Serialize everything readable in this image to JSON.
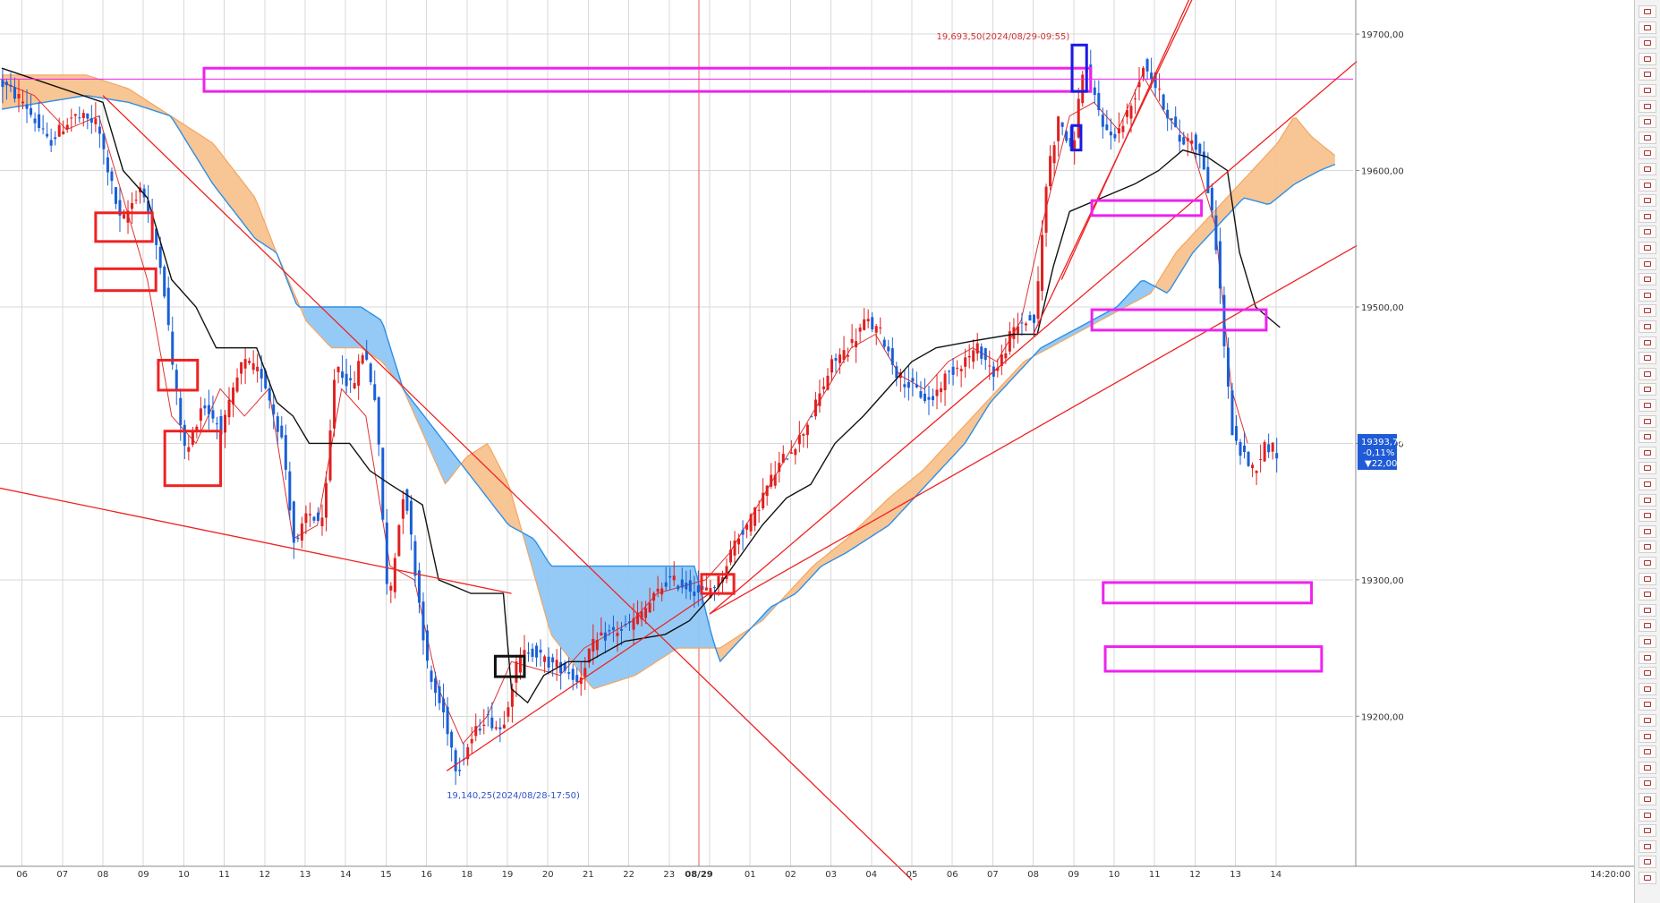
{
  "chart_data": {
    "type": "candlestick",
    "title": "",
    "ylim": [
      19090,
      19725
    ],
    "yticks": [
      "19700,00",
      "19600,00",
      "19500,00",
      "19400,00",
      "19300,00",
      "19200,00"
    ],
    "ytick_values": [
      19700,
      19600,
      19500,
      19400,
      19300,
      19200
    ],
    "xticks": [
      "06",
      "07",
      "08",
      "09",
      "10",
      "11",
      "12",
      "13",
      "14",
      "15",
      "16",
      "18",
      "19",
      "20",
      "21",
      "22",
      "23",
      "08/29",
      "01",
      "02",
      "03",
      "04",
      "05",
      "06",
      "07",
      "08",
      "09",
      "10",
      "11",
      "12",
      "13",
      "14"
    ],
    "xtick_slots": [
      0.5,
      1.5,
      2.5,
      3.5,
      4.5,
      5.5,
      6.5,
      7.5,
      8.5,
      9.5,
      10.5,
      11.5,
      12.5,
      13.5,
      14.5,
      15.5,
      16.5,
      17.5,
      18.5,
      19.5,
      20.5,
      21.5,
      22.5,
      23.5,
      24.5,
      25.5,
      26.5,
      27.5,
      28.5,
      29.5,
      30.5,
      31.5
    ],
    "xaxis_end_label": "14:20:00",
    "day_separator_label": "08/29",
    "close_path": [
      [
        0,
        19665
      ],
      [
        0.6,
        19650
      ],
      [
        1.2,
        19620
      ],
      [
        1.8,
        19640
      ],
      [
        2.4,
        19635
      ],
      [
        3.0,
        19560
      ],
      [
        3.5,
        19590
      ],
      [
        4.0,
        19530
      ],
      [
        4.3,
        19450
      ],
      [
        4.6,
        19390
      ],
      [
        5.0,
        19430
      ],
      [
        5.5,
        19410
      ],
      [
        6.0,
        19460
      ],
      [
        6.5,
        19450
      ],
      [
        7.0,
        19400
      ],
      [
        7.3,
        19320
      ],
      [
        7.6,
        19350
      ],
      [
        8.0,
        19340
      ],
      [
        8.3,
        19460
      ],
      [
        8.7,
        19440
      ],
      [
        9.0,
        19470
      ],
      [
        9.3,
        19430
      ],
      [
        9.6,
        19280
      ],
      [
        10.0,
        19370
      ],
      [
        10.3,
        19300
      ],
      [
        10.6,
        19230
      ],
      [
        11.0,
        19200
      ],
      [
        11.3,
        19160
      ],
      [
        11.6,
        19180
      ],
      [
        12.0,
        19200
      ],
      [
        12.4,
        19190
      ],
      [
        12.8,
        19240
      ],
      [
        13.1,
        19250
      ],
      [
        13.5,
        19240
      ],
      [
        14.0,
        19235
      ],
      [
        14.3,
        19225
      ],
      [
        14.6,
        19250
      ],
      [
        15.0,
        19260
      ],
      [
        15.5,
        19265
      ],
      [
        16.0,
        19280
      ],
      [
        16.5,
        19300
      ],
      [
        17.0,
        19295
      ],
      [
        17.4,
        19290
      ],
      [
        17.8,
        19300
      ],
      [
        18.2,
        19330
      ],
      [
        18.6,
        19345
      ],
      [
        19.0,
        19370
      ],
      [
        19.4,
        19390
      ],
      [
        19.8,
        19405
      ],
      [
        20.2,
        19430
      ],
      [
        20.6,
        19460
      ],
      [
        21.0,
        19470
      ],
      [
        21.4,
        19490
      ],
      [
        21.8,
        19480
      ],
      [
        22.2,
        19450
      ],
      [
        22.6,
        19440
      ],
      [
        23.0,
        19430
      ],
      [
        23.4,
        19450
      ],
      [
        23.8,
        19460
      ],
      [
        24.2,
        19470
      ],
      [
        24.6,
        19450
      ],
      [
        25.0,
        19480
      ],
      [
        25.3,
        19490
      ],
      [
        25.6,
        19490
      ],
      [
        25.9,
        19600
      ],
      [
        26.2,
        19640
      ],
      [
        26.5,
        19610
      ],
      [
        26.8,
        19680
      ],
      [
        27.1,
        19650
      ],
      [
        27.4,
        19625
      ],
      [
        27.7,
        19630
      ],
      [
        28.0,
        19650
      ],
      [
        28.3,
        19680
      ],
      [
        28.6,
        19660
      ],
      [
        28.9,
        19640
      ],
      [
        29.2,
        19620
      ],
      [
        29.5,
        19625
      ],
      [
        29.8,
        19600
      ],
      [
        30.1,
        19540
      ],
      [
        30.3,
        19460
      ],
      [
        30.5,
        19400
      ],
      [
        30.8,
        19390
      ],
      [
        31.0,
        19380
      ],
      [
        31.3,
        19400
      ],
      [
        31.6,
        19393
      ]
    ],
    "kijun": [
      [
        0,
        19675
      ],
      [
        2.5,
        19650
      ],
      [
        3.0,
        19600
      ],
      [
        3.6,
        19580
      ],
      [
        4.2,
        19520
      ],
      [
        4.8,
        19500
      ],
      [
        5.3,
        19470
      ],
      [
        6.3,
        19470
      ],
      [
        6.8,
        19430
      ],
      [
        7.2,
        19420
      ],
      [
        7.6,
        19400
      ],
      [
        8.6,
        19400
      ],
      [
        9.1,
        19380
      ],
      [
        9.6,
        19370
      ],
      [
        10.4,
        19355
      ],
      [
        10.8,
        19300
      ],
      [
        11.6,
        19290
      ],
      [
        12.4,
        19290
      ],
      [
        12.6,
        19220
      ],
      [
        13.0,
        19210
      ],
      [
        13.4,
        19230
      ],
      [
        14.0,
        19240
      ],
      [
        14.5,
        19240
      ],
      [
        15.4,
        19255
      ],
      [
        16.4,
        19260
      ],
      [
        17.0,
        19270
      ],
      [
        17.6,
        19290
      ],
      [
        18.2,
        19315
      ],
      [
        18.8,
        19340
      ],
      [
        19.4,
        19360
      ],
      [
        20.0,
        19370
      ],
      [
        20.6,
        19400
      ],
      [
        21.3,
        19420
      ],
      [
        21.9,
        19440
      ],
      [
        22.5,
        19460
      ],
      [
        23.1,
        19470
      ],
      [
        24.0,
        19475
      ],
      [
        25.0,
        19480
      ],
      [
        25.6,
        19480
      ],
      [
        26.0,
        19530
      ],
      [
        26.4,
        19570
      ],
      [
        27.2,
        19580
      ],
      [
        28.0,
        19590
      ],
      [
        28.6,
        19600
      ],
      [
        29.2,
        19615
      ],
      [
        29.8,
        19610
      ],
      [
        30.3,
        19600
      ],
      [
        30.6,
        19540
      ],
      [
        31.0,
        19500
      ],
      [
        31.6,
        19485
      ]
    ],
    "span_a": [
      [
        0,
        19670
      ],
      [
        1.0,
        19670
      ],
      [
        2.0,
        19670
      ],
      [
        3.0,
        19660
      ],
      [
        4.0,
        19640
      ],
      [
        5.0,
        19620
      ],
      [
        6.0,
        19580
      ],
      [
        6.5,
        19540
      ],
      [
        7.2,
        19490
      ],
      [
        7.8,
        19470
      ],
      [
        8.5,
        19470
      ],
      [
        9.0,
        19460
      ],
      [
        9.5,
        19440
      ],
      [
        10.5,
        19370
      ],
      [
        11.0,
        19390
      ],
      [
        11.5,
        19400
      ],
      [
        12.0,
        19370
      ],
      [
        13.0,
        19260
      ],
      [
        14.0,
        19220
      ],
      [
        15.0,
        19230
      ],
      [
        16.0,
        19250
      ],
      [
        17.0,
        19250
      ],
      [
        17.5,
        19260
      ],
      [
        18.0,
        19270
      ],
      [
        18.6,
        19290
      ],
      [
        19.2,
        19310
      ],
      [
        20.0,
        19330
      ],
      [
        21.0,
        19360
      ],
      [
        21.8,
        19380
      ],
      [
        22.4,
        19400
      ],
      [
        23.0,
        19420
      ],
      [
        23.6,
        19440
      ],
      [
        24.2,
        19460
      ],
      [
        24.8,
        19470
      ],
      [
        25.4,
        19480
      ],
      [
        26.0,
        19490
      ],
      [
        26.6,
        19500
      ],
      [
        27.2,
        19510
      ],
      [
        27.8,
        19540
      ],
      [
        28.4,
        19560
      ],
      [
        29.0,
        19580
      ],
      [
        29.6,
        19600
      ],
      [
        30.2,
        19620
      ],
      [
        30.6,
        19640
      ],
      [
        31.0,
        19625
      ],
      [
        31.6,
        19610
      ]
    ],
    "span_b": [
      [
        0,
        19645
      ],
      [
        2.0,
        19655
      ],
      [
        3.0,
        19650
      ],
      [
        4.0,
        19640
      ],
      [
        5.0,
        19590
      ],
      [
        6.0,
        19550
      ],
      [
        6.5,
        19540
      ],
      [
        7.0,
        19500
      ],
      [
        7.8,
        19500
      ],
      [
        8.5,
        19500
      ],
      [
        9.0,
        19490
      ],
      [
        9.5,
        19440
      ],
      [
        10.0,
        19420
      ],
      [
        10.5,
        19400
      ],
      [
        11.0,
        19380
      ],
      [
        11.5,
        19360
      ],
      [
        12.0,
        19340
      ],
      [
        12.6,
        19330
      ],
      [
        13.0,
        19310
      ],
      [
        13.5,
        19310
      ],
      [
        14.5,
        19310
      ],
      [
        15.5,
        19310
      ],
      [
        16.4,
        19310
      ],
      [
        16.8,
        19260
      ],
      [
        17.0,
        19240
      ],
      [
        17.6,
        19260
      ],
      [
        18.2,
        19280
      ],
      [
        18.8,
        19290
      ],
      [
        19.4,
        19310
      ],
      [
        20.0,
        19320
      ],
      [
        21.0,
        19340
      ],
      [
        21.6,
        19360
      ],
      [
        22.2,
        19380
      ],
      [
        22.8,
        19400
      ],
      [
        23.4,
        19430
      ],
      [
        24.0,
        19450
      ],
      [
        24.6,
        19470
      ],
      [
        25.2,
        19480
      ],
      [
        25.8,
        19490
      ],
      [
        26.4,
        19500
      ],
      [
        27.0,
        19520
      ],
      [
        27.6,
        19510
      ],
      [
        28.2,
        19540
      ],
      [
        28.8,
        19560
      ],
      [
        29.4,
        19580
      ],
      [
        30.0,
        19575
      ],
      [
        30.6,
        19590
      ],
      [
        31.2,
        19600
      ],
      [
        31.6,
        19605
      ]
    ],
    "lagging_span": [
      [
        0,
        19665
      ],
      [
        0.8,
        19655
      ],
      [
        1.6,
        19630
      ],
      [
        2.4,
        19640
      ],
      [
        3.0,
        19580
      ],
      [
        3.6,
        19520
      ],
      [
        4.2,
        19420
      ],
      [
        4.8,
        19400
      ],
      [
        5.4,
        19440
      ],
      [
        6.0,
        19420
      ],
      [
        6.6,
        19440
      ],
      [
        7.2,
        19330
      ],
      [
        7.8,
        19340
      ],
      [
        8.4,
        19440
      ],
      [
        9.0,
        19420
      ],
      [
        9.6,
        19310
      ],
      [
        10.2,
        19300
      ],
      [
        10.8,
        19220
      ],
      [
        11.4,
        19180
      ],
      [
        12.0,
        19200
      ],
      [
        12.6,
        19240
      ],
      [
        13.2,
        19235
      ],
      [
        13.8,
        19230
      ],
      [
        14.4,
        19250
      ],
      [
        15.0,
        19260
      ],
      [
        15.6,
        19270
      ],
      [
        16.2,
        19290
      ],
      [
        16.8,
        19295
      ],
      [
        17.4,
        19300
      ],
      [
        18.0,
        19320
      ],
      [
        18.6,
        19350
      ],
      [
        19.2,
        19380
      ],
      [
        19.8,
        19410
      ],
      [
        20.4,
        19440
      ],
      [
        21.0,
        19470
      ],
      [
        21.6,
        19480
      ],
      [
        22.2,
        19450
      ],
      [
        22.8,
        19440
      ],
      [
        23.4,
        19460
      ],
      [
        24.0,
        19470
      ],
      [
        24.6,
        19460
      ],
      [
        25.2,
        19490
      ],
      [
        25.8,
        19570
      ],
      [
        26.4,
        19640
      ],
      [
        27.0,
        19650
      ],
      [
        27.6,
        19630
      ],
      [
        28.2,
        19670
      ],
      [
        28.8,
        19640
      ],
      [
        29.4,
        19620
      ],
      [
        30.0,
        19560
      ],
      [
        30.4,
        19440
      ],
      [
        30.8,
        19400
      ]
    ],
    "trend_lines": [
      {
        "from": [
          2.5,
          19655
        ],
        "to": [
          22.5,
          19080
        ],
        "color": "#ee2222"
      },
      {
        "from": [
          -0.5,
          19370
        ],
        "to": [
          12.6,
          19290
        ],
        "color": "#ee2222"
      },
      {
        "from": [
          11.0,
          19160
        ],
        "to": [
          17.5,
          19290
        ],
        "color": "#ee2222"
      },
      {
        "from": [
          17.5,
          19275
        ],
        "to": [
          33.5,
          19680
        ],
        "color": "#ee2222"
      },
      {
        "from": [
          17.5,
          19275
        ],
        "to": [
          33.5,
          19545
        ],
        "color": "#ee2222"
      },
      {
        "from": [
          25.5,
          19480
        ],
        "to": [
          29.5,
          19730
        ],
        "color": "#ee2222"
      },
      {
        "from": [
          26.2,
          19520
        ],
        "to": [
          29.5,
          19735
        ],
        "color": "#ee2222"
      }
    ],
    "horizontal_levels": [
      {
        "price": 19667,
        "color": "#ee22ee"
      }
    ],
    "boxes": [
      {
        "x": [
          5.0,
          26.92
        ],
        "y": [
          19658,
          19675
        ],
        "color": "#ee22ee"
      },
      {
        "x": [
          26.46,
          26.82
        ],
        "y": [
          19658,
          19692
        ],
        "color": "#1a1ae6"
      },
      {
        "x": [
          26.46,
          26.68
        ],
        "y": [
          19615,
          19633
        ],
        "color": "#1a1ae6"
      },
      {
        "x": [
          26.95,
          29.66
        ],
        "y": [
          19567,
          19578
        ],
        "color": "#ee22ee"
      },
      {
        "x": [
          26.95,
          31.26
        ],
        "y": [
          19483,
          19498
        ],
        "color": "#ee22ee"
      },
      {
        "x": [
          27.23,
          32.38
        ],
        "y": [
          19283,
          19298
        ],
        "color": "#ee22ee"
      },
      {
        "x": [
          27.28,
          32.63
        ],
        "y": [
          19233,
          19251
        ],
        "color": "#ee22ee"
      },
      {
        "x": [
          2.32,
          3.72
        ],
        "y": [
          19548,
          19569
        ],
        "color": "#ee2222"
      },
      {
        "x": [
          2.32,
          3.81
        ],
        "y": [
          19512,
          19528
        ],
        "color": "#ee2222"
      },
      {
        "x": [
          3.87,
          4.84
        ],
        "y": [
          19439,
          19461
        ],
        "color": "#ee2222"
      },
      {
        "x": [
          4.03,
          5.41
        ],
        "y": [
          19369,
          19409
        ],
        "color": "#ee2222"
      },
      {
        "x": [
          17.3,
          18.1
        ],
        "y": [
          19290,
          19304
        ],
        "color": "#ee2222"
      },
      {
        "x": [
          12.2,
          12.92
        ],
        "y": [
          19229,
          19244
        ],
        "color": "#111111"
      }
    ],
    "annotations": [
      {
        "text": "19,693,50(2024/08/29-09:55)",
        "x": 26.4,
        "y": 19696,
        "color": "#cc3333",
        "anchor": "end"
      },
      {
        "text": "19,140,25(2024/08/28-17:50)",
        "x": 11.0,
        "y": 19140,
        "color": "#3355cc",
        "anchor": "start"
      }
    ],
    "current_price": {
      "price": "19393,75",
      "change": "-0,11%",
      "delta": "▼22,00",
      "value": 19393.75
    },
    "colors": {
      "up_candle": "#e02020",
      "down_candle": "#1a5fd6",
      "cloud_bull": "#f8c28e",
      "cloud_bear": "#8fc7f5",
      "span_a_line": "#f3a660",
      "span_b_line": "#2e8fe6",
      "kijun_line": "#111111",
      "lagging_line": "#e03030",
      "day_separator": "#e85b5b",
      "grid": "#d9d9d9",
      "price_tag_bg": "#1f5bd6"
    }
  }
}
